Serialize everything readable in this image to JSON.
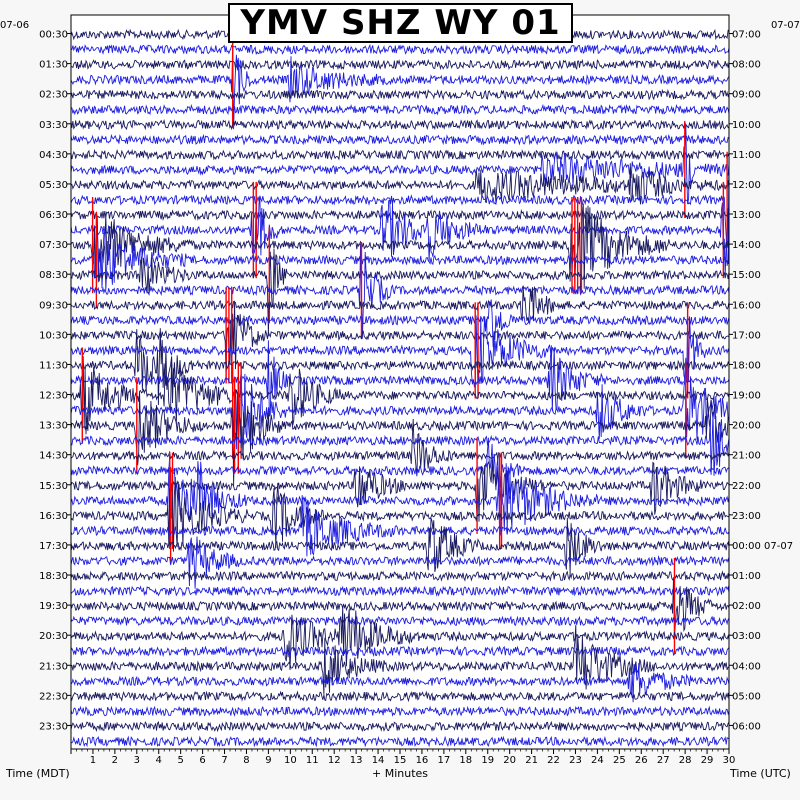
{
  "chart_data": {
    "type": "heatmap",
    "title": "YMV SHZ WY 01",
    "xlabel": "+ Minutes",
    "left_axis_label": "Time (MDT)",
    "right_axis_label": "Time (UTC)",
    "left_corner_label": "07-06",
    "right_corner_label": "07-07",
    "x_ticks": [
      "1",
      "2",
      "3",
      "4",
      "5",
      "6",
      "7",
      "8",
      "9",
      "10",
      "11",
      "12",
      "13",
      "14",
      "15",
      "16",
      "17",
      "18",
      "19",
      "20",
      "21",
      "22",
      "23",
      "24",
      "25",
      "26",
      "27",
      "28",
      "29",
      "30"
    ],
    "xlim": [
      0,
      30
    ],
    "left_ticks": [
      "00:30",
      "01:30",
      "02:30",
      "03:30",
      "04:30",
      "05:30",
      "06:30",
      "07:30",
      "08:30",
      "09:30",
      "10:30",
      "11:30",
      "12:30",
      "13:30",
      "14:30",
      "15:30",
      "16:30",
      "17:30",
      "18:30",
      "19:30",
      "20:30",
      "21:30",
      "22:30",
      "23:30"
    ],
    "right_ticks": [
      "07:00",
      "08:00",
      "09:00",
      "10:00",
      "11:00",
      "12:00",
      "13:00",
      "14:00",
      "15:00",
      "16:00",
      "17:00",
      "18:00",
      "19:00",
      "20:00",
      "21:00",
      "22:00",
      "23:00",
      "00:00 07-07",
      "01:00",
      "02:00",
      "03:00",
      "04:00",
      "05:00",
      "06:00"
    ],
    "traces_per_hour": 2,
    "trace_colors": [
      "#1a1a60",
      "#1e1ee0"
    ],
    "clip_color": "#ff0000",
    "events": [
      {
        "trace": 3,
        "minute": 7.4,
        "amp": 1.6,
        "dur": 0.3
      },
      {
        "trace": 3,
        "minute": 10.0,
        "amp": 0.6,
        "dur": 1.5
      },
      {
        "trace": 9,
        "minute": 28.0,
        "amp": 1.8,
        "dur": 0.2
      },
      {
        "trace": 9,
        "minute": 21.5,
        "amp": 0.5,
        "dur": 4.0
      },
      {
        "trace": 10,
        "minute": 18.5,
        "amp": 0.5,
        "dur": 4.0
      },
      {
        "trace": 10,
        "minute": 25.5,
        "amp": 0.7,
        "dur": 1.2
      },
      {
        "trace": 11,
        "minute": 29.9,
        "amp": 2.2,
        "dur": 0.4
      },
      {
        "trace": 13,
        "minute": 8.3,
        "amp": 2.0,
        "dur": 0.4
      },
      {
        "trace": 13,
        "minute": 14.2,
        "amp": 1.2,
        "dur": 0.9
      },
      {
        "trace": 13,
        "minute": 16.2,
        "amp": 1.0,
        "dur": 0.9
      },
      {
        "trace": 13,
        "minute": 29.7,
        "amp": 1.6,
        "dur": 0.5
      },
      {
        "trace": 14,
        "minute": 1.0,
        "amp": 1.3,
        "dur": 1.5
      },
      {
        "trace": 14,
        "minute": 22.8,
        "amp": 1.8,
        "dur": 1.5
      },
      {
        "trace": 15,
        "minute": 1.1,
        "amp": 1.3,
        "dur": 1.4
      },
      {
        "trace": 16,
        "minute": 3.2,
        "amp": 0.8,
        "dur": 0.8
      },
      {
        "trace": 16,
        "minute": 9.0,
        "amp": 1.8,
        "dur": 0.3
      },
      {
        "trace": 17,
        "minute": 13.2,
        "amp": 1.6,
        "dur": 0.5
      },
      {
        "trace": 18,
        "minute": 20.6,
        "amp": 1.0,
        "dur": 0.6
      },
      {
        "trace": 19,
        "minute": 19.0,
        "amp": 1.4,
        "dur": 0.4
      },
      {
        "trace": 20,
        "minute": 7.1,
        "amp": 1.8,
        "dur": 0.6
      },
      {
        "trace": 21,
        "minute": 18.3,
        "amp": 1.5,
        "dur": 1.2
      },
      {
        "trace": 21,
        "minute": 28.0,
        "amp": 2.0,
        "dur": 0.3
      },
      {
        "trace": 22,
        "minute": 3.0,
        "amp": 1.4,
        "dur": 0.6
      },
      {
        "trace": 22,
        "minute": 4.0,
        "amp": 1.2,
        "dur": 0.6
      },
      {
        "trace": 23,
        "minute": 9.0,
        "amp": 1.5,
        "dur": 0.3
      },
      {
        "trace": 23,
        "minute": 21.8,
        "amp": 1.2,
        "dur": 0.8
      },
      {
        "trace": 24,
        "minute": 0.5,
        "amp": 1.3,
        "dur": 1.0
      },
      {
        "trace": 24,
        "minute": 4.3,
        "amp": 1.3,
        "dur": 1.2
      },
      {
        "trace": 24,
        "minute": 10.0,
        "amp": 1.2,
        "dur": 0.8
      },
      {
        "trace": 25,
        "minute": 7.4,
        "amp": 2.2,
        "dur": 0.8
      },
      {
        "trace": 25,
        "minute": 28.0,
        "amp": 1.4,
        "dur": 1.0
      },
      {
        "trace": 25,
        "minute": 24.0,
        "amp": 1.0,
        "dur": 0.8
      },
      {
        "trace": 26,
        "minute": 3.0,
        "amp": 1.3,
        "dur": 1.0
      },
      {
        "trace": 26,
        "minute": 7.4,
        "amp": 1.8,
        "dur": 0.8
      },
      {
        "trace": 26,
        "minute": 29.0,
        "amp": 1.0,
        "dur": 0.6
      },
      {
        "trace": 27,
        "minute": 29.2,
        "amp": 1.2,
        "dur": 1.0
      },
      {
        "trace": 28,
        "minute": 15.6,
        "amp": 1.0,
        "dur": 0.6
      },
      {
        "trace": 29,
        "minute": 19.0,
        "amp": 1.0,
        "dur": 0.6
      },
      {
        "trace": 30,
        "minute": 13.0,
        "amp": 1.0,
        "dur": 0.8
      },
      {
        "trace": 30,
        "minute": 18.5,
        "amp": 1.4,
        "dur": 1.0
      },
      {
        "trace": 30,
        "minute": 26.5,
        "amp": 1.0,
        "dur": 0.8
      },
      {
        "trace": 31,
        "minute": 4.5,
        "amp": 1.4,
        "dur": 1.2
      },
      {
        "trace": 31,
        "minute": 5.8,
        "amp": 1.3,
        "dur": 0.6
      },
      {
        "trace": 31,
        "minute": 19.5,
        "amp": 1.4,
        "dur": 1.5
      },
      {
        "trace": 32,
        "minute": 4.5,
        "amp": 1.3,
        "dur": 1.2
      },
      {
        "trace": 32,
        "minute": 9.2,
        "amp": 1.2,
        "dur": 0.8
      },
      {
        "trace": 33,
        "minute": 10.5,
        "amp": 1.0,
        "dur": 1.5
      },
      {
        "trace": 34,
        "minute": 16.3,
        "amp": 1.2,
        "dur": 0.8
      },
      {
        "trace": 34,
        "minute": 22.6,
        "amp": 1.0,
        "dur": 0.6
      },
      {
        "trace": 35,
        "minute": 5.4,
        "amp": 1.0,
        "dur": 0.8
      },
      {
        "trace": 38,
        "minute": 27.5,
        "amp": 1.3,
        "dur": 0.6
      },
      {
        "trace": 40,
        "minute": 9.7,
        "amp": 1.2,
        "dur": 1.0
      },
      {
        "trace": 40,
        "minute": 12.3,
        "amp": 1.2,
        "dur": 1.2
      },
      {
        "trace": 42,
        "minute": 11.5,
        "amp": 0.9,
        "dur": 1.0
      },
      {
        "trace": 42,
        "minute": 23.0,
        "amp": 1.2,
        "dur": 1.2
      },
      {
        "trace": 43,
        "minute": 25.5,
        "amp": 0.7,
        "dur": 1.0
      }
    ]
  }
}
